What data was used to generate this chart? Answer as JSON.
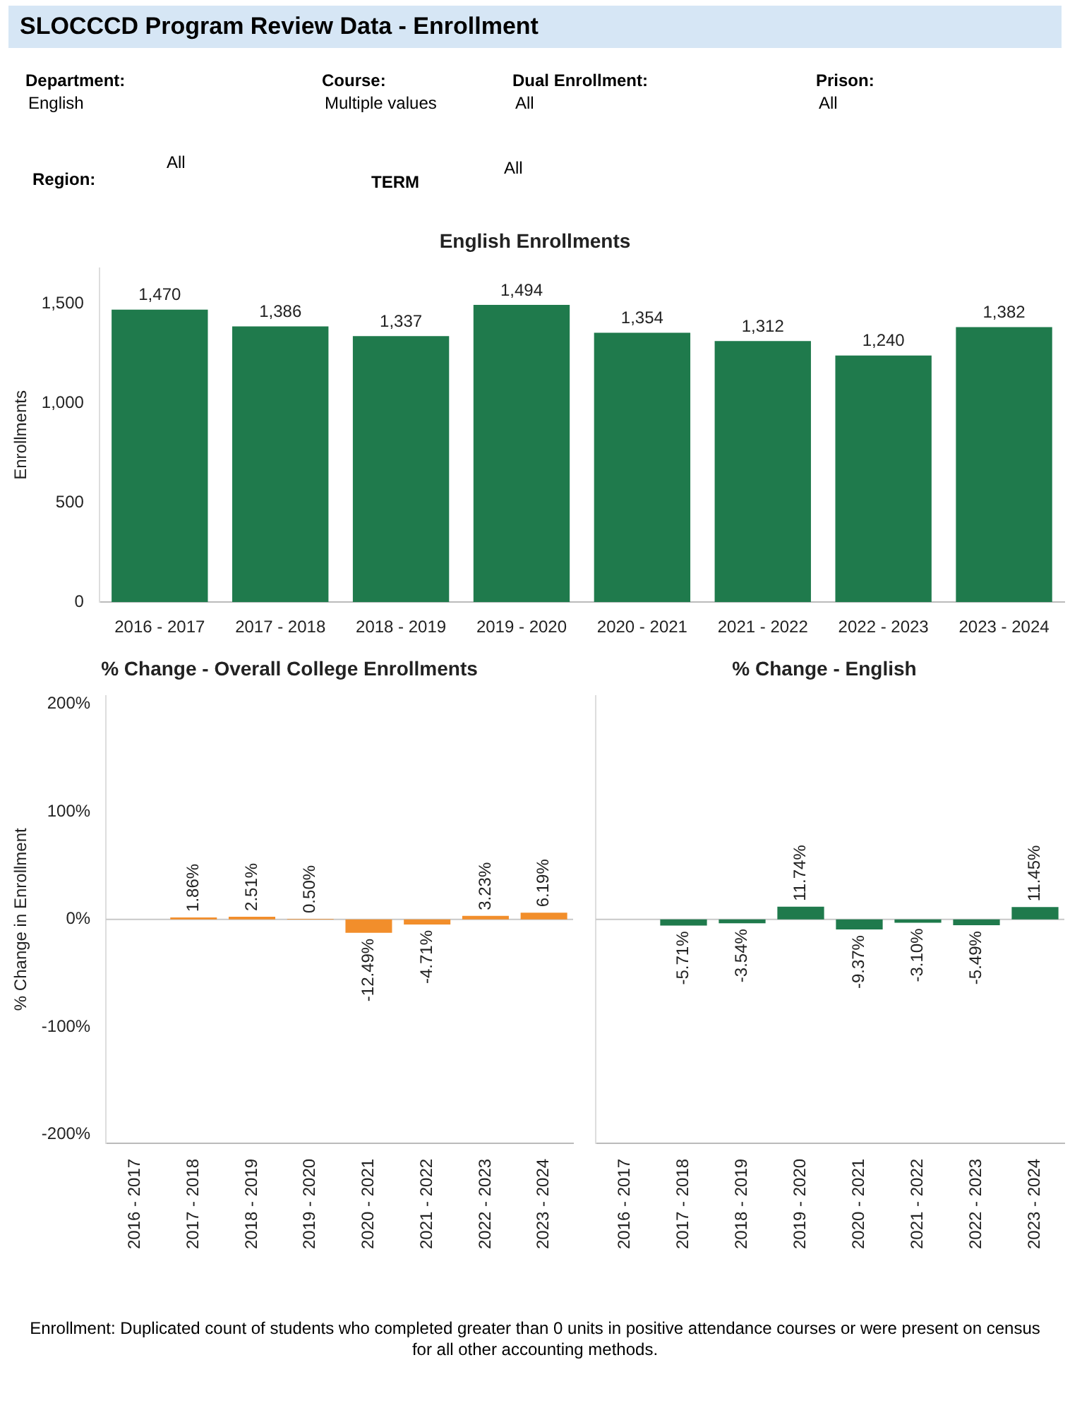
{
  "chart_data": [
    {
      "type": "other",
      "title": "SLOCCCD Program Review Data - Enrollment",
      "annotations": [
        "Department:",
        "English",
        "Course:",
        "Multiple values",
        "Dual Enrollment:",
        "All",
        "Prison:",
        "All",
        "Region:",
        "All",
        "TERM",
        "All"
      ]
    },
    {
      "type": "bar",
      "title": "English Enrollments",
      "ylabel": "Enrollments",
      "categories": [
        "2016 - 2017",
        "2017 - 2018",
        "2018 - 2019",
        "2019 - 2020",
        "2020 - 2021",
        "2021 - 2022",
        "2022 - 2023",
        "2023 - 2024"
      ],
      "values": [
        1470,
        1386,
        1337,
        1494,
        1354,
        1312,
        1240,
        1382
      ],
      "color": "#1f7a4c",
      "value_labels": [
        "1,470",
        "1,386",
        "1,337",
        "1,494",
        "1,354",
        "1,312",
        "1,240",
        "1,382"
      ],
      "ylim": [
        0,
        1680
      ],
      "yticks": [
        0,
        500,
        {
          "value": 1000,
          "label": "1,000"
        },
        {
          "value": 1500,
          "label": "1,500"
        }
      ]
    },
    {
      "type": "bar",
      "title": "% Change - Overall College Enrollments",
      "ylabel": "% Change in Enrollment",
      "categories": [
        "2016 - 2017",
        "2017 - 2018",
        "2018 - 2019",
        "2019 - 2020",
        "2020 - 2021",
        "2021 - 2022",
        "2022 - 2023",
        "2023 - 2024"
      ],
      "values": [
        null,
        1.86,
        2.51,
        0.5,
        -12.49,
        -4.71,
        3.23,
        6.19
      ],
      "color": "#f28e2b",
      "value_labels": [
        null,
        "1.86%",
        "2.51%",
        "0.50%",
        "-12.49%",
        "-4.71%",
        "3.23%",
        "6.19%"
      ],
      "ylim": [
        -208,
        208
      ],
      "yticks": [
        {
          "value": -200,
          "label": "-200%"
        },
        {
          "value": -100,
          "label": "-100%"
        },
        {
          "value": 0,
          "label": "0%"
        },
        {
          "value": 100,
          "label": "100%"
        },
        {
          "value": 200,
          "label": "200%"
        }
      ],
      "ref_lines": [
        {
          "axis": "y",
          "value": 0,
          "color": "#c8c8c8"
        }
      ]
    },
    {
      "type": "bar",
      "title": "% Change - English",
      "categories": [
        "2016 - 2017",
        "2017 - 2018",
        "2018 - 2019",
        "2019 - 2020",
        "2020 - 2021",
        "2021 - 2022",
        "2022 - 2023",
        "2023 - 2024"
      ],
      "values": [
        null,
        -5.71,
        -3.54,
        11.74,
        -9.37,
        -3.1,
        -5.49,
        11.45
      ],
      "color": "#1f7a4c",
      "value_labels": [
        null,
        "-5.71%",
        "-3.54%",
        "11.74%",
        "-9.37%",
        "-3.10%",
        "-5.49%",
        "11.45%"
      ],
      "ylim": [
        -208,
        208
      ],
      "yticks": [
        -200,
        -100,
        0,
        100,
        200
      ],
      "tick_labels": "x",
      "ref_lines": [
        {
          "axis": "y",
          "value": 0,
          "color": "#c8c8c8"
        }
      ],
      "annotations": [
        "Enrollment: Duplicated count of students who completed greater than 0 units in positive attendance courses or were present on census for all other accounting methods."
      ]
    }
  ]
}
